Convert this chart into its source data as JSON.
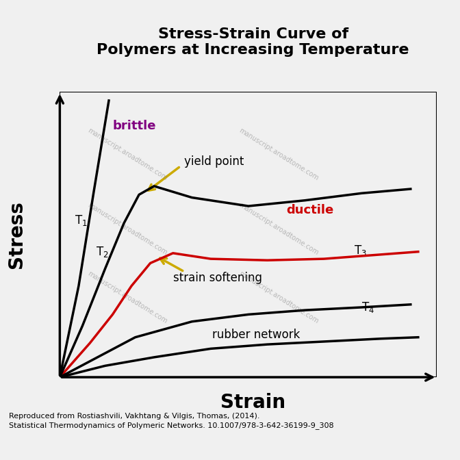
{
  "title_line1": "Stress-Strain Curve of",
  "title_line2": "Polymers at Increasing Temperature",
  "xlabel": "Strain",
  "ylabel": "Stress",
  "bg_color": "#f0f0f0",
  "plot_bg_color": "#ffffff",
  "watermark_text": "manuscript.aroadtome.com",
  "caption_line1": "Reproduced from Rostiashvili, Vakhtang & Vilgis, Thomas, (2014).",
  "caption_line2": "Statistical Thermodynamics of Polymeric Networks. 10.1007/978-3-642-36199-9_308",
  "brittle_color": "#000000",
  "brittle_label_color": "#800080",
  "ductile_color": "#000000",
  "ductile_label_color": "#cc0000",
  "T3_color": "#cc0000",
  "T4_color": "#000000",
  "rubber_color": "#000000",
  "arrow_color": "#ccaa00",
  "T1_label_color": "#000000",
  "T2_label_color": "#000000",
  "T3_label_color": "#000000",
  "T4_label_color": "#000000"
}
